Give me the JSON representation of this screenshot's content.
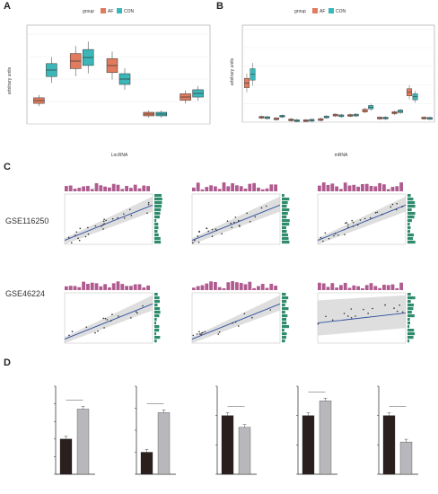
{
  "panel_letters": [
    "A",
    "B",
    "C",
    "D"
  ],
  "panelA": {
    "legend_title": "group",
    "legend_items": [
      {
        "label": "AF",
        "color": "#e07b5e"
      },
      {
        "label": "CON",
        "color": "#3bb7b9"
      }
    ],
    "ylabel": "arbitrary units",
    "xlabel": "LncRNA",
    "yticks": [
      "200",
      "150",
      "100",
      "50",
      "0"
    ],
    "significance": [
      "***",
      "ns",
      "*",
      "ns",
      "ns"
    ],
    "categories": [
      "AC011483.1",
      "C3orf35",
      "LINC00452",
      "NBR2",
      "UBE2D3-AS1"
    ]
  },
  "panelB": {
    "legend_title": "group",
    "legend_items": [
      {
        "label": "AF",
        "color": "#e07b5e"
      },
      {
        "label": "CON",
        "color": "#3bb7b9"
      }
    ],
    "ylabel": "arbitrary units",
    "xlabel": "mRNA",
    "yticks": [
      "2500",
      "2000",
      "1500",
      "1000",
      "500",
      "0"
    ],
    "significance": [
      "*",
      "ns",
      "ns",
      "ns",
      "ns",
      "***",
      "*",
      "ns",
      "**",
      "ns",
      "ns",
      "ns",
      "ns"
    ],
    "categories": [
      "CCR7",
      "CD8A",
      "GZMB",
      "HLA-DOB",
      "HSPA2",
      "IL17RB",
      "ITK",
      "KL",
      "MICB",
      "NFYC",
      "PDK1",
      "PTGFR",
      "SORT1"
    ]
  },
  "panelC": {
    "dataset_labels": [
      "GSE116250",
      "GSE46224"
    ],
    "plots": [
      {
        "title": "Relationship between AC011483.1 and CCR7",
        "stats": "t_Student(25) = 6.90, p = 3.12e-07, r_Pearson = 0.81",
        "xlabel": "CCR7",
        "ylabel": "AC011483.1"
      },
      {
        "title": "Relationship between AC011483.1 and MICB",
        "stats": "t_Student(25) = 6.97, p = 2.60e-07, r_Pearson = 0.81",
        "xlabel": "MICB",
        "ylabel": "AC011483.1"
      },
      {
        "title": "Relationship between LINC00452 and IL17RB",
        "stats": "t_Student(25) = 8.71, p = 4.94e-07, r_Pearson = 0.80",
        "xlabel": "IL17RB",
        "ylabel": "LINC00452"
      },
      {
        "title": "Relationship between AC011483.1 and CCR7",
        "stats": "t_Student(14) = 4.25, p = 8.07e-04, r_Pearson = 0.75",
        "xlabel": "CCR7",
        "ylabel": "AC011483.1"
      },
      {
        "title": "Relationship between AC011483.1 and MICB",
        "stats": "t_Student(14) = 5.67, p = 5.79e-05, r_Pearson = 0.83",
        "xlabel": "MICB",
        "ylabel": "AC011483.1"
      },
      {
        "title": "Relationship between LINC00452 and IL17RB",
        "stats": "t_Student(14) = 0.99, p = 0.34, r_Pearson = 0.25",
        "xlabel": "IL17RB",
        "ylabel": "LINC00452"
      }
    ]
  },
  "panelD": {
    "plots": [
      {
        "title": "AC011483.1",
        "sig": "*",
        "yticks": [
          "2.5",
          "2.0",
          "1.5",
          "1.0",
          "0.5",
          "0.0"
        ]
      },
      {
        "title": "CCR7",
        "sig": "**",
        "yticks": [
          "4",
          "3",
          "2",
          "1",
          "0"
        ]
      },
      {
        "title": "MICB",
        "sig": "**",
        "yticks": [
          "1.5",
          "1.0",
          "0.5",
          "0.0"
        ]
      },
      {
        "title": "LINC00452",
        "sig": "*",
        "yticks": [
          "1.5",
          "1.0",
          "0.5",
          "0.0"
        ]
      },
      {
        "title": "IL17RB",
        "sig": "****",
        "yticks": [
          "1.5",
          "1.0",
          "0.5",
          "0.0"
        ]
      }
    ],
    "ylabel": "Relative expression level (fold)",
    "x_categories": [
      "Control",
      "Treated"
    ]
  },
  "chart_data": [
    {
      "type": "box",
      "categories": [
        "AC011483.1",
        "C3orf35",
        "LINC00452",
        "NBR2",
        "UBE2D3-AS1"
      ],
      "series": [
        {
          "name": "AF",
          "values": [
            52,
            140,
            130,
            22,
            60
          ]
        },
        {
          "name": "CON",
          "values": [
            120,
            148,
            100,
            22,
            68
          ]
        }
      ],
      "ylim": [
        0,
        220
      ]
    },
    {
      "type": "box",
      "categories": [
        "CCR7",
        "CD8A",
        "GZMB",
        "HLA-DOB",
        "HSPA2",
        "IL17RB",
        "ITK",
        "KL",
        "MICB",
        "NFYC",
        "PDK1",
        "PTGFR",
        "SORT1"
      ],
      "series": [
        {
          "name": "AF",
          "values": [
            1050,
            130,
            90,
            60,
            40,
            70,
            190,
            180,
            310,
            110,
            250,
            800,
            110
          ]
        },
        {
          "name": "CON",
          "values": [
            1280,
            120,
            160,
            40,
            50,
            140,
            170,
            190,
            400,
            110,
            290,
            680,
            100
          ]
        }
      ],
      "ylim": [
        0,
        2600
      ]
    },
    {
      "type": "bar",
      "categories": [
        "Control",
        "Treated"
      ],
      "series": [
        {
          "name": "AC011483.1",
          "values": [
            1.0,
            1.85
          ]
        },
        {
          "name": "CCR7",
          "values": [
            1.0,
            2.8
          ]
        },
        {
          "name": "MICB",
          "values": [
            1.0,
            0.8
          ]
        },
        {
          "name": "LINC00452",
          "values": [
            1.0,
            1.25
          ]
        },
        {
          "name": "IL17RB",
          "values": [
            1.0,
            0.55
          ]
        }
      ]
    }
  ]
}
